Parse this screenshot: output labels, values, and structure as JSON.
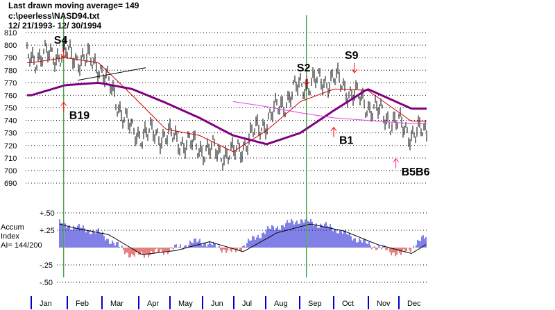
{
  "header": {
    "line1": "Last drawn moving average= 149",
    "line2": "c:\\peerless\\NASD94.txt",
    "line3": " 12/ 21/1993- 12/ 30/1994"
  },
  "colors": {
    "price": "#000000",
    "ma_short": "#cc0000",
    "ma_long": "#800080",
    "ma_149": "#e040e0",
    "signal": "#ff0000",
    "signal_text": "#000000",
    "buy_cluster": "#ff1493",
    "vline": "#008000",
    "accum_pos": "#0000cc",
    "accum_neg": "#cc0000",
    "grid": "#000000",
    "month_tick": "#0000cc"
  },
  "chart_data": [
    {
      "type": "line",
      "title": "",
      "price_axis": {
        "ylim": [
          690,
          815
        ],
        "ticks": [
          "810",
          "800",
          "790",
          "780",
          "770",
          "760",
          "750",
          "740",
          "730",
          "720",
          "710",
          "700",
          "690"
        ],
        "grid": "dotted"
      },
      "x_labels": [
        "Jan",
        "Feb",
        "Mar",
        "Apr",
        "May",
        "Jun",
        "Jul",
        "Aug",
        "Sep",
        "Oct",
        "Nov",
        "Dec"
      ],
      "series": [
        {
          "values_by_month": [
            790,
            793,
            785,
            730,
            728,
            718,
            712,
            740,
            768,
            773,
            752,
            735
          ]
        },
        {
          "values_by_month": [
            786,
            790,
            786,
            760,
            733,
            728,
            715,
            732,
            755,
            765,
            764,
            745
          ]
        },
        {
          "values_by_month": [
            760,
            768,
            770,
            765,
            754,
            742,
            728,
            721,
            730,
            748,
            765,
            753
          ]
        },
        {
          "values_by_month": [
            null,
            null,
            null,
            null,
            null,
            null,
            755,
            751,
            746,
            742,
            740,
            738
          ]
        }
      ],
      "signals": [
        {
          "label": "S4",
          "direction": "sell",
          "month": 0.9,
          "price": 790
        },
        {
          "label": "B19",
          "direction": "buy",
          "month": 0.9,
          "price": 750
        },
        {
          "label": "S2",
          "direction": "sell",
          "month": 8.2,
          "price": 768
        },
        {
          "label": "S9",
          "direction": "sell",
          "month": 9.6,
          "price": 778
        },
        {
          "label": "B1",
          "direction": "buy",
          "month": 9.0,
          "price": 730
        },
        {
          "label": "B5B6",
          "direction": "buy",
          "month": 10.9,
          "price": 705
        }
      ],
      "vertical_markers_month": [
        0.9,
        8.2
      ]
    },
    {
      "type": "bar",
      "title": "Accum Index",
      "annotation": "AI= 144/200",
      "label_line1": "Accum",
      "label_line2": "Index",
      "y_axis": {
        "ylim": [
          -0.5,
          0.55
        ],
        "ticks": [
          "+.50",
          "+.25",
          "-.25",
          "-.50"
        ]
      },
      "values_by_month": [
        0.48,
        0.33,
        0.22,
        -0.12,
        -0.05,
        0.1,
        -0.07,
        0.25,
        0.4,
        0.28,
        0.05,
        -0.1,
        0.25
      ]
    }
  ]
}
